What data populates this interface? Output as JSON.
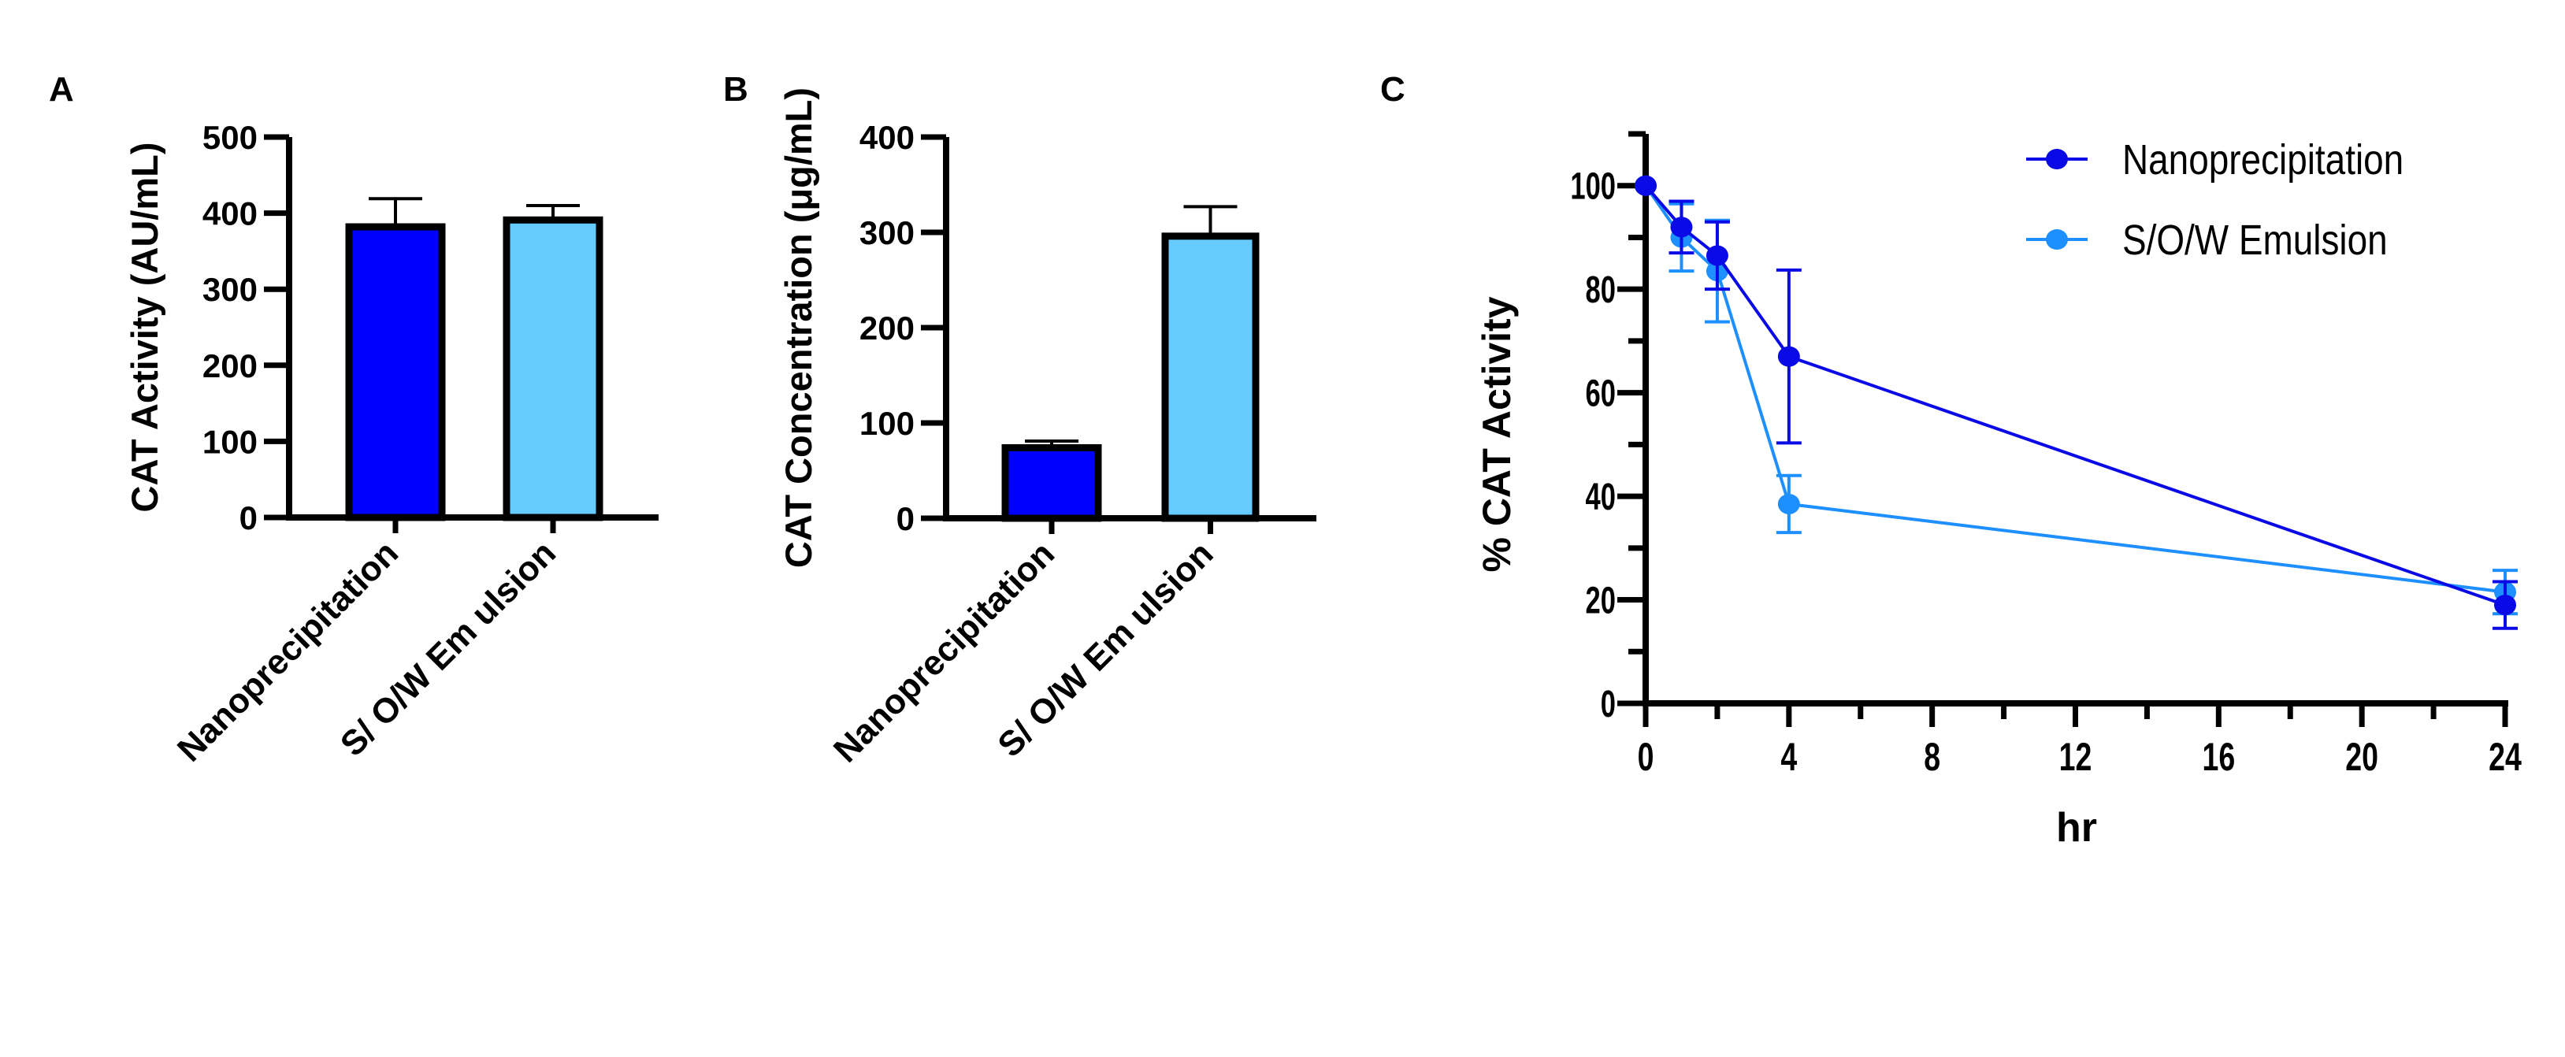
{
  "colors": {
    "nano": "#0000FF",
    "sow_bar": "#66CCFF",
    "nano_line": "#0A0AE6",
    "sow_line": "#1E8FFF",
    "axis": "#000000"
  },
  "chart_data": [
    {
      "panel": "A",
      "type": "bar",
      "title": "",
      "xlabel": "",
      "ylabel": "CAT Activity (AU/mL)",
      "ylim": [
        0,
        500
      ],
      "yticks": [
        "0",
        "100",
        "200",
        "300",
        "400",
        "500"
      ],
      "categories": [
        "Nanoprecipitation",
        "S/ O/W Em ulsion"
      ],
      "values": [
        382,
        391
      ],
      "errors": [
        37,
        19
      ],
      "grid": false
    },
    {
      "panel": "B",
      "type": "bar",
      "title": "",
      "xlabel": "",
      "ylabel": "CAT Concentration (μg/mL)",
      "ylim": [
        0,
        400
      ],
      "yticks": [
        "0",
        "100",
        "200",
        "300",
        "400"
      ],
      "categories": [
        "Nanoprecipitation",
        "S/ O/W Em ulsion"
      ],
      "values": [
        74,
        296
      ],
      "errors": [
        7,
        31
      ],
      "grid": false
    },
    {
      "panel": "C",
      "type": "line",
      "title": "",
      "xlabel": "hr",
      "ylabel": "% CAT Activity",
      "xlim": [
        0,
        24
      ],
      "ylim": [
        0,
        110
      ],
      "xticks": [
        "0",
        "4",
        "8",
        "12",
        "16",
        "20",
        "24"
      ],
      "yticks": [
        "0",
        "20",
        "40",
        "60",
        "80",
        "100"
      ],
      "legend_position": "top-right",
      "grid": false,
      "series": [
        {
          "name": "Nanoprecipitation",
          "x": [
            0,
            1,
            2,
            4,
            24
          ],
          "y": [
            100,
            92,
            86.5,
            67,
            19
          ],
          "err": [
            0,
            5,
            6.5,
            16.7,
            4.5
          ]
        },
        {
          "name": "S/O/W Emulsion",
          "x": [
            0,
            1,
            2,
            4,
            24
          ],
          "y": [
            100,
            90,
            83.5,
            38.5,
            21.5
          ],
          "err": [
            0,
            6.5,
            9.8,
            5.5,
            4.2
          ]
        }
      ]
    }
  ]
}
